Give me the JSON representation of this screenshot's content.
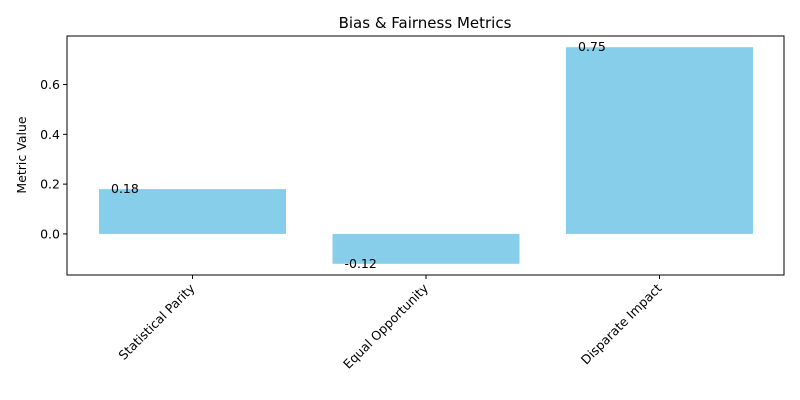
{
  "chart_data": {
    "type": "bar",
    "title": "Bias & Fairness Metrics",
    "xlabel": "",
    "ylabel": "Metric Value",
    "categories": [
      "Statistical Parity",
      "Equal Opportunity",
      "Disparate Impact"
    ],
    "values": [
      0.18,
      -0.12,
      0.75
    ],
    "value_labels": [
      "0.18",
      "-0.12",
      "0.75"
    ],
    "ylim": [
      -0.165,
      0.795
    ],
    "yticks": [
      0.0,
      0.2,
      0.4,
      0.6
    ],
    "ytick_labels": [
      "0.0",
      "0.2",
      "0.4",
      "0.6"
    ],
    "xtick_rotation": 45,
    "bar_color": "#87ceeb",
    "grid": false,
    "legend": "none"
  }
}
